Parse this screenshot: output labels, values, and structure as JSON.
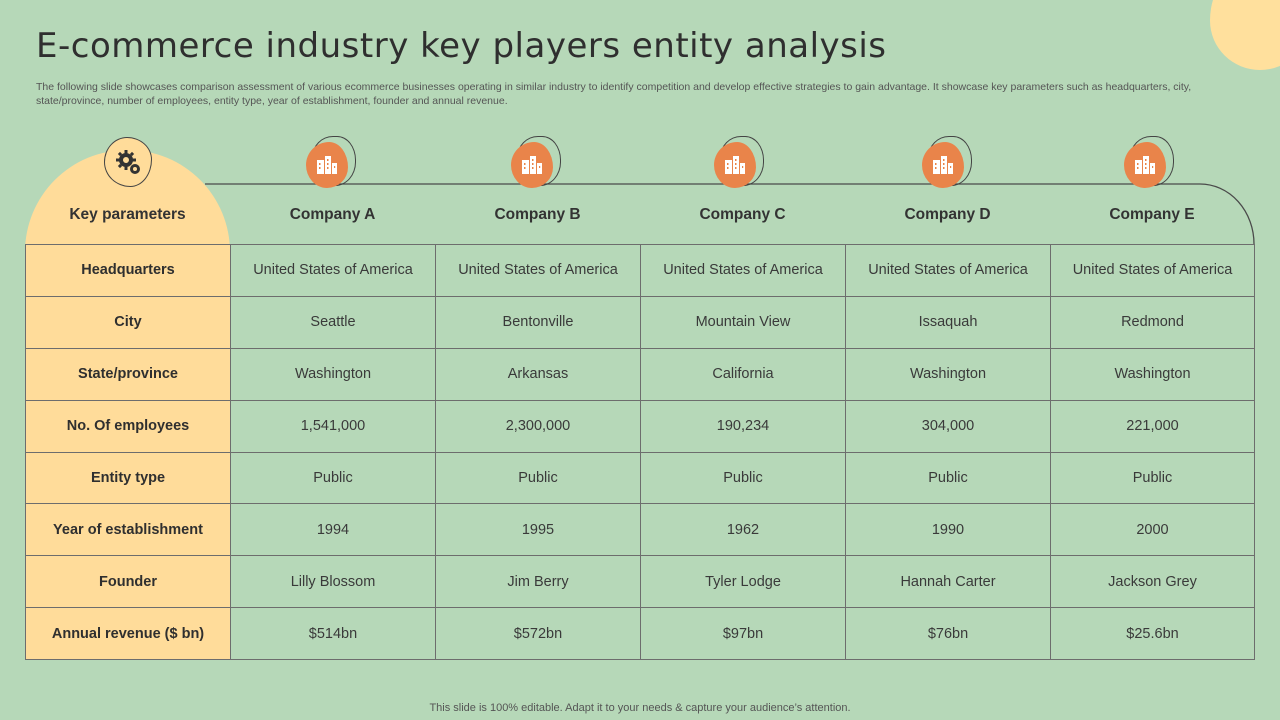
{
  "title": "E-commerce industry key players entity analysis",
  "subtitle": "The following slide showcases comparison assessment of various ecommerce businesses operating in similar industry to identify competition and develop effective strategies to gain advantage. It showcase key parameters such as headquarters, city, state/province, number of employees, entity type,  year of establishment, founder and annual revenue.",
  "header_label": "Key parameters",
  "companies": [
    "Company A",
    "Company B",
    "Company C",
    "Company D",
    "Company E"
  ],
  "rows": [
    {
      "param": "Headquarters",
      "values": [
        "United States of America",
        "United States of America",
        "United States of America",
        "United States of America",
        "United States of America"
      ]
    },
    {
      "param": "City",
      "values": [
        "Seattle",
        "Bentonville",
        "Mountain View",
        "Issaquah",
        "Redmond"
      ]
    },
    {
      "param": "State/province",
      "values": [
        "Washington",
        "Arkansas",
        "California",
        "Washington",
        "Washington"
      ]
    },
    {
      "param": "No. Of employees",
      "values": [
        "1,541,000",
        "2,300,000",
        "190,234",
        "304,000",
        "221,000"
      ]
    },
    {
      "param": "Entity type",
      "values": [
        "Public",
        "Public",
        "Public",
        "Public",
        "Public"
      ]
    },
    {
      "param": "Year of establishment",
      "values": [
        "1994",
        "1995",
        "1962",
        "1990",
        "2000"
      ]
    },
    {
      "param": "Founder",
      "values": [
        "Lilly Blossom",
        "Jim Berry",
        "Tyler Lodge",
        "Hannah Carter",
        "Jackson Grey"
      ]
    },
    {
      "param": "Annual revenue ($ bn)",
      "values": [
        "$514bn",
        "$572bn",
        "$97bn",
        "$76bn",
        "$25.6bn"
      ]
    }
  ],
  "footer": "This slide is 100% editable. Adapt it to your needs & capture your audience’s attention.",
  "colors": {
    "background": "#b6d8b8",
    "param_fill": "#ffdc9a",
    "icon_fill": "#e9844a",
    "grid_line": "#6d6d6d"
  },
  "icons": {
    "header": "gear-settings-icon",
    "company": "building-icon"
  }
}
